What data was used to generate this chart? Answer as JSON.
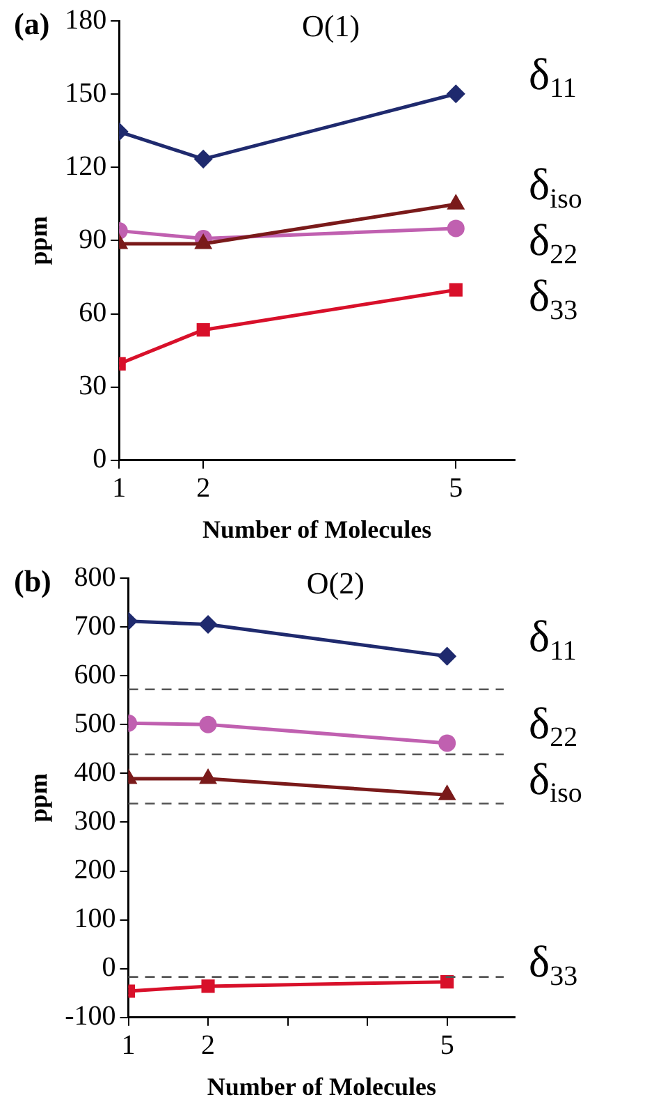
{
  "chart_data": [
    {
      "type": "line",
      "title": "O(1)",
      "annotations": [
        "(a)"
      ],
      "xlabel": "Number of Molecules",
      "ylabel": "ppm",
      "x": [
        1,
        2,
        5
      ],
      "xlim": [
        1,
        5.7
      ],
      "xticks": [
        1,
        2,
        5
      ],
      "ylim": [
        0,
        180
      ],
      "yticks": [
        0,
        30,
        60,
        90,
        120,
        150,
        180
      ],
      "grid": false,
      "legend": false,
      "series": [
        {
          "name": "δ$_{11}$",
          "color": "#1f2a6e",
          "marker": "diamond",
          "values": [
            134.6,
            123.4,
            150.1
          ]
        },
        {
          "name": "δ$_{iso}$",
          "color": "#7a1a1a",
          "marker": "triangle",
          "values": [
            88.7,
            88.7,
            104.9
          ]
        },
        {
          "name": "δ$_{22}$",
          "color": "#c060b0",
          "marker": "circle",
          "values": [
            94,
            90.8,
            95
          ]
        },
        {
          "name": "δ$_{33}$",
          "color": "#d8102a",
          "marker": "square",
          "values": [
            39.5,
            53.4,
            69.8
          ]
        }
      ]
    },
    {
      "type": "line",
      "title": "O(2)",
      "annotations": [
        "(b)"
      ],
      "xlabel": "Number of Molecules",
      "ylabel": "ppm",
      "x": [
        1,
        2,
        5
      ],
      "xlim": [
        1,
        5.85
      ],
      "xticks": [
        1,
        2,
        {
          "value": 3,
          "label": null
        },
        {
          "value": 4,
          "label": null
        },
        5
      ],
      "ylim": [
        -100,
        800
      ],
      "yticks": [
        -100,
        0,
        100,
        200,
        300,
        400,
        500,
        600,
        700,
        800
      ],
      "grid": false,
      "legend": false,
      "ref_lines": [
        {
          "axis": "y",
          "value": 572,
          "color": "#555555",
          "line_style": "dashed"
        },
        {
          "axis": "y",
          "value": 439,
          "color": "#555555",
          "line_style": "dashed"
        },
        {
          "axis": "y",
          "value": 338,
          "color": "#555555",
          "line_style": "dashed"
        },
        {
          "axis": "y",
          "value": -17,
          "color": "#555555",
          "line_style": "dashed"
        }
      ],
      "series": [
        {
          "name": "δ$_{11}$",
          "color": "#1f2a6e",
          "marker": "diamond",
          "values": [
            712,
            705,
            640
          ]
        },
        {
          "name": "δ$_{22}$",
          "color": "#c060b0",
          "marker": "circle",
          "values": [
            503,
            500,
            462
          ]
        },
        {
          "name": "δ$_{iso}$",
          "color": "#7a1a1a",
          "marker": "triangle",
          "values": [
            389,
            389,
            356
          ]
        },
        {
          "name": "δ$_{33}$",
          "color": "#d8102a",
          "marker": "square",
          "values": [
            -46,
            -36,
            -27
          ]
        }
      ]
    }
  ]
}
